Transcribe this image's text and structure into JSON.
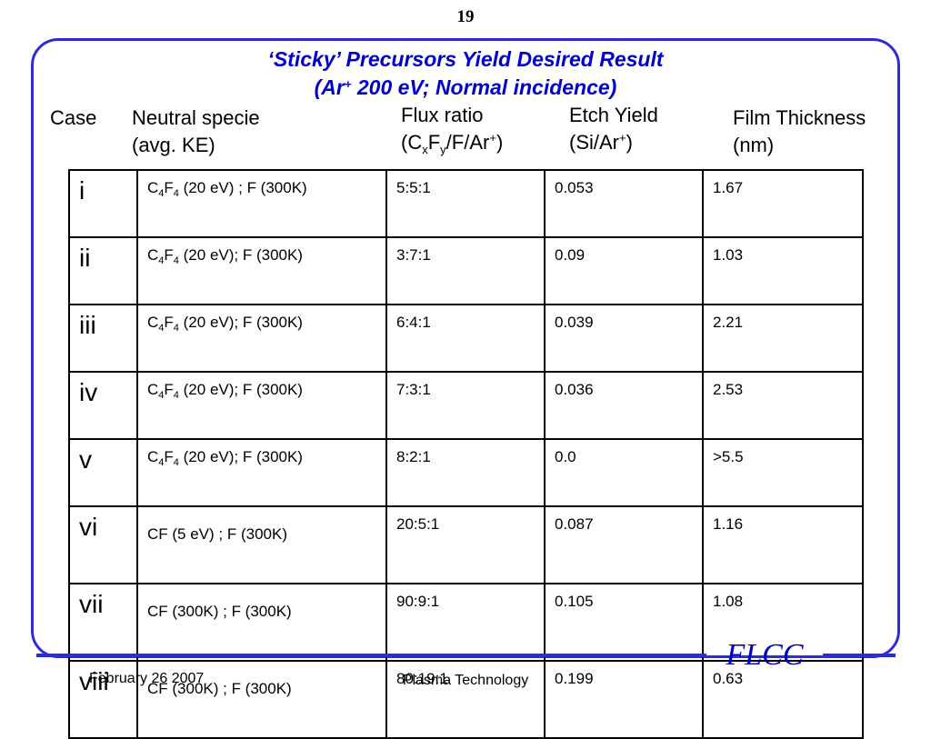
{
  "page_number": "19",
  "title": {
    "line1": "‘Sticky’ Precursors Yield Desired Result",
    "line2_pre": "(Ar",
    "line2_sup": "+",
    "line2_post": " 200 eV; Normal incidence)"
  },
  "columns": {
    "case": "Case",
    "neutral_line1": "Neutral specie",
    "neutral_line2": "(avg. KE)",
    "flux_line1": "Flux ratio",
    "flux_a": "(C",
    "flux_sub_x": "x",
    "flux_b": "F",
    "flux_sub_y": "y",
    "flux_c": "/F/Ar",
    "flux_sup": "+",
    "flux_d": ")",
    "etch_line1": "Etch Yield",
    "etch_a": "(Si/Ar",
    "etch_sup": "+",
    "etch_b": ")",
    "film_line1": "Film Thickness",
    "film_line2": "(nm)"
  },
  "rows": [
    {
      "case": "i",
      "sp_a": "C",
      "sp_s1": "4",
      "sp_b": "F",
      "sp_s2": "4",
      "sp_rest": " (20 eV) ; F (300K)",
      "flux": "5:5:1",
      "etch": "0.053",
      "film": "1.67"
    },
    {
      "case": "ii",
      "sp_a": "C",
      "sp_s1": "4",
      "sp_b": "F",
      "sp_s2": "4",
      "sp_rest": " (20 eV); F (300K)",
      "flux": "3:7:1",
      "etch": "0.09",
      "film": "1.03"
    },
    {
      "case": "iii",
      "sp_a": "C",
      "sp_s1": "4",
      "sp_b": "F",
      "sp_s2": "4",
      "sp_rest": " (20 eV); F (300K)",
      "flux": "6:4:1",
      "etch": "0.039",
      "film": "2.21"
    },
    {
      "case": "iv",
      "sp_a": "C",
      "sp_s1": "4",
      "sp_b": "F",
      "sp_s2": "4",
      "sp_rest": " (20 eV); F (300K)",
      "flux": "7:3:1",
      "etch": "0.036",
      "film": "2.53"
    },
    {
      "case": "v",
      "sp_a": "C",
      "sp_s1": "4",
      "sp_b": "F",
      "sp_s2": "4",
      "sp_rest": " (20 eV); F (300K)",
      "flux": "8:2:1",
      "etch": "0.0",
      "film": ">5.5"
    },
    {
      "case": "vi",
      "species": "CF (5 eV) ; F (300K)",
      "flux": "20:5:1",
      "etch": "0.087",
      "film": "1.16"
    },
    {
      "case": "vii",
      "species": "CF (300K) ; F (300K)",
      "flux": "90:9:1",
      "etch": "0.105",
      "film": "1.08"
    },
    {
      "case": "viii",
      "species": "CF (300K) ; F (300K)",
      "flux": "80:19:1",
      "etch": "0.199",
      "film": "0.63"
    }
  ],
  "footer": {
    "logo": "FLCC",
    "date": "February 26 2007",
    "text": "Plasma Technology"
  },
  "colors": {
    "accent": "#2d2dd8",
    "title": "#0000cc"
  }
}
